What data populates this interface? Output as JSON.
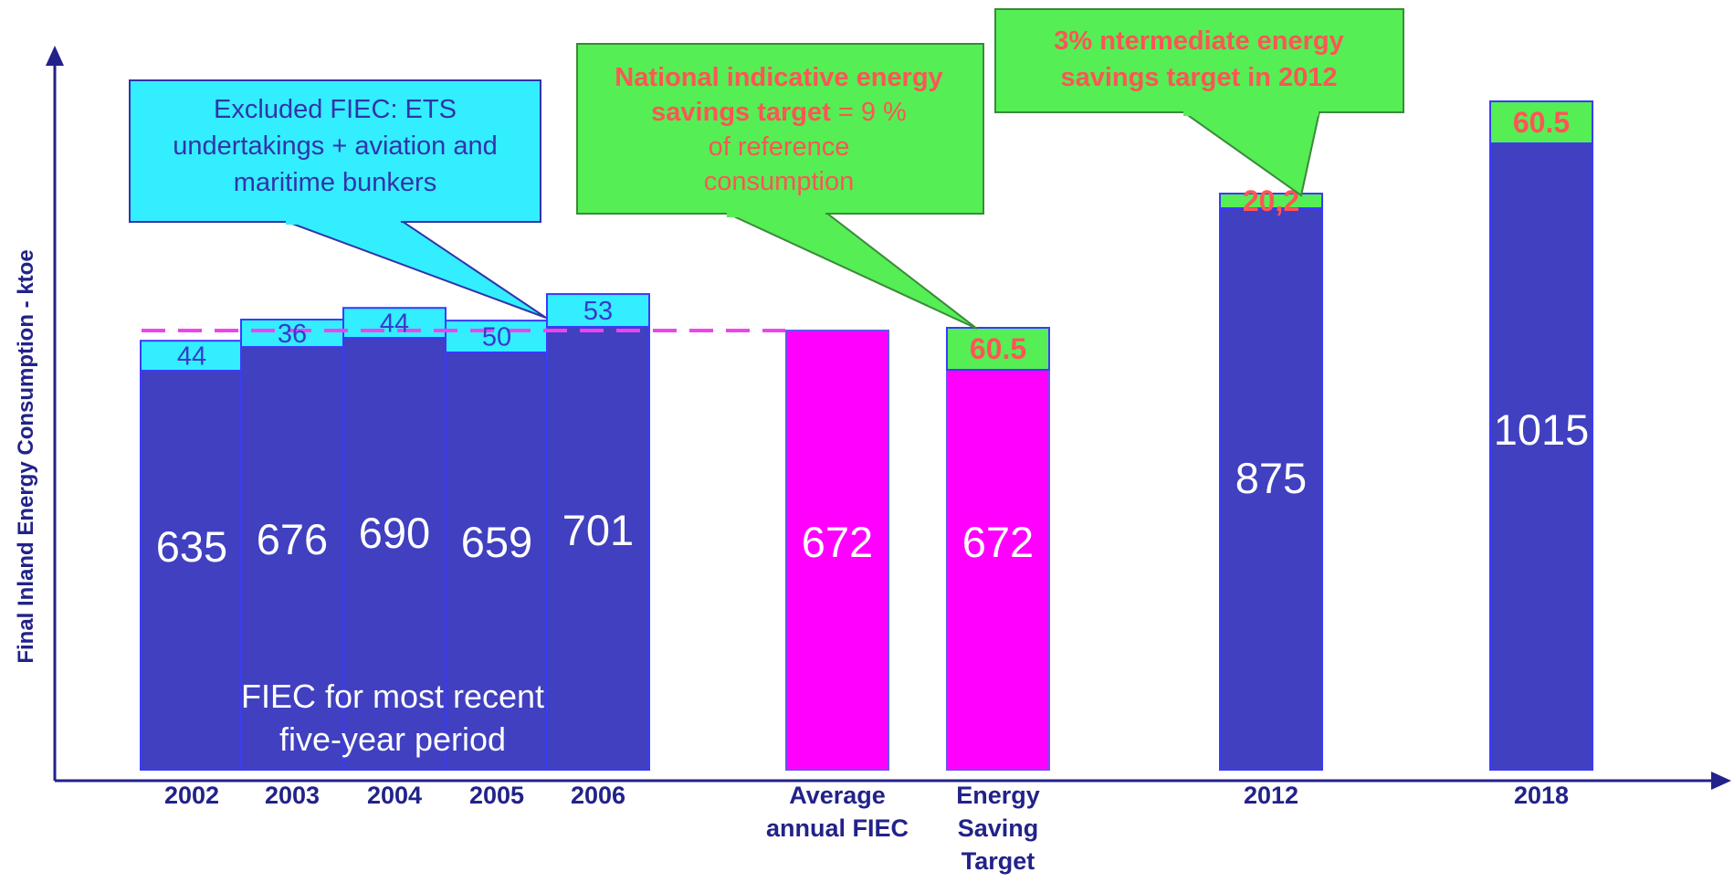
{
  "chart_data": {
    "type": "bar",
    "ylabel": "Final Inland Energy Consumption - ktoe",
    "categories": [
      "2002",
      "2003",
      "2004",
      "2005",
      "2006",
      "Average annual FIEC",
      "Energy Saving Target",
      "2012",
      "2018"
    ],
    "category_lines": [
      [
        "2002"
      ],
      [
        "2003"
      ],
      [
        "2004"
      ],
      [
        "2005"
      ],
      [
        "2006"
      ],
      [
        "Average",
        "annual FIEC"
      ],
      [
        "Energy",
        "Saving",
        "Target"
      ],
      [
        "2012"
      ],
      [
        "2018"
      ]
    ],
    "series": [
      {
        "name": "FIEC",
        "values": [
          635,
          676,
          690,
          659,
          701,
          672,
          672,
          875,
          1015
        ],
        "labels": [
          "635",
          "676",
          "690",
          "659",
          "701",
          "672",
          "672",
          "875",
          "1015"
        ]
      },
      {
        "name": "Excluded FIEC",
        "values": [
          44,
          36,
          44,
          50,
          53,
          null,
          null,
          null,
          null
        ],
        "labels": [
          "44",
          "36",
          "44",
          "50",
          "53",
          "",
          "",
          "",
          ""
        ]
      },
      {
        "name": "Energy savings target",
        "values": [
          null,
          null,
          null,
          null,
          null,
          null,
          60.5,
          20.2,
          60.5
        ],
        "labels": [
          "",
          "",
          "",
          "",
          "",
          "",
          "60.5",
          "20,2",
          "60.5"
        ]
      }
    ],
    "grid": false,
    "colors": {
      "fiec": "#4040c0",
      "excluded": "#33eeff",
      "average": "#ff00ff",
      "target": "#55ee55",
      "axis": "#22228a",
      "callout_red": "#ff5555",
      "callout_blue": "#3333aa",
      "dash": "#ee44ee"
    }
  },
  "annotations": {
    "excluded_callout": [
      "Excluded FIEC: ETS",
      "undertakings + aviation and",
      "maritime bunkers"
    ],
    "national_callout": {
      "line1": "National indicative energy",
      "line2_bold": "savings target",
      "line2_rest": " = 9 %",
      "line3": "of reference",
      "line4": "consumption"
    },
    "intermediate_callout": [
      "3% ntermediate energy",
      "savings target in 2012"
    ],
    "period_note": [
      "FIEC for most recent",
      "five-year period"
    ]
  }
}
